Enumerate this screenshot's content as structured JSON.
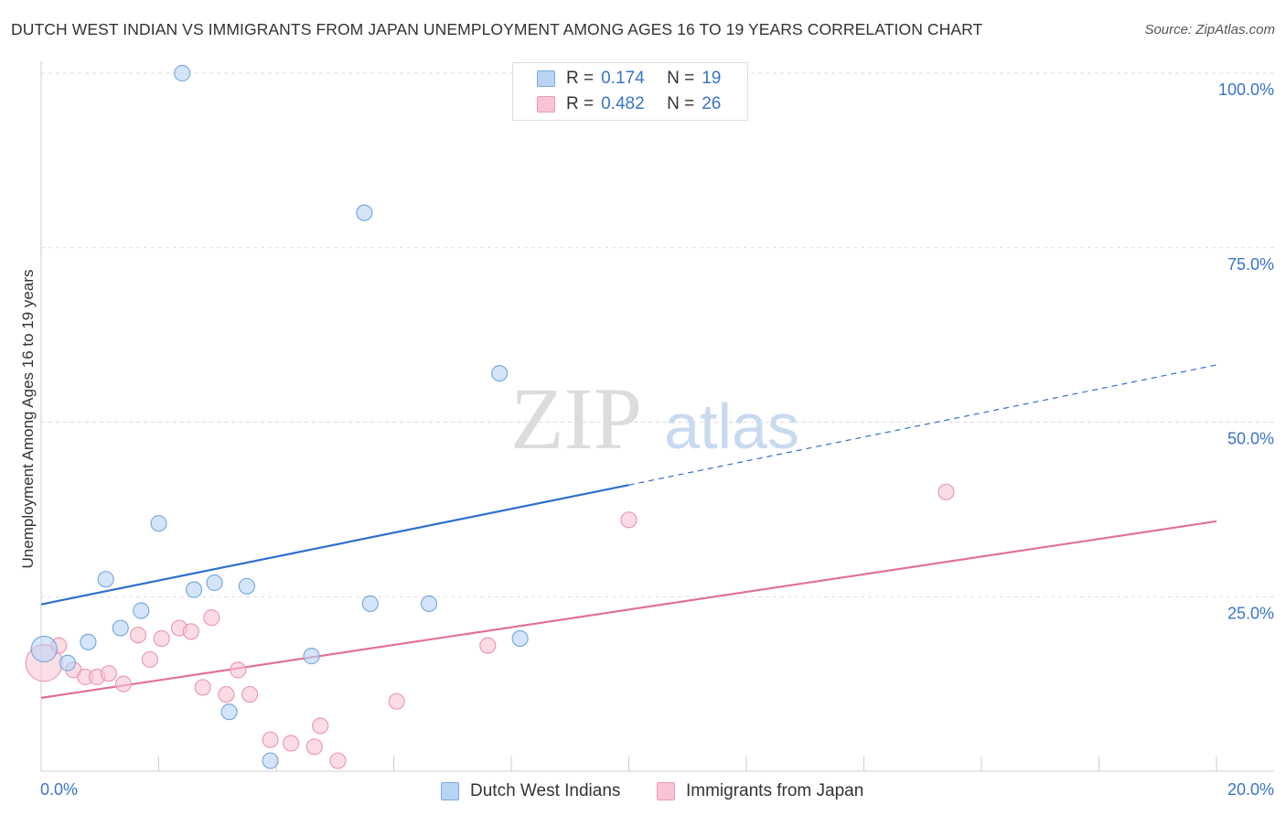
{
  "header": {
    "title": "DUTCH WEST INDIAN VS IMMIGRANTS FROM JAPAN UNEMPLOYMENT AMONG AGES 16 TO 19 YEARS CORRELATION CHART",
    "source": "Source: ZipAtlas.com"
  },
  "watermark": {
    "zip": "ZIP",
    "atlas": "atlas"
  },
  "legend": {
    "r_label": "R =",
    "n_label": "N =",
    "series1": {
      "r": "0.174",
      "n": "19"
    },
    "series2": {
      "r": "0.482",
      "n": "26"
    }
  },
  "colors": {
    "series1_fill": "#b8d4f5",
    "series1_stroke": "#7aaae0",
    "series1_line": "#2e6fcf",
    "series2_fill": "#f8c4d3",
    "series2_stroke": "#ec9ab2",
    "series2_line": "#e07298",
    "axis_label": "#3a74c8"
  },
  "chart_data": {
    "type": "scatter",
    "title": "DUTCH WEST INDIAN VS IMMIGRANTS FROM JAPAN UNEMPLOYMENT AMONG AGES 16 TO 19 YEARS CORRELATION CHART",
    "xlabel": "",
    "ylabel": "Unemployment Among Ages 16 to 19 years",
    "xlim": [
      0,
      20
    ],
    "ylim": [
      0,
      100
    ],
    "x_tick_labels": [
      "0.0%",
      "20.0%"
    ],
    "y_ticks": [
      {
        "value": 100,
        "label": "100.0%"
      },
      {
        "value": 75,
        "label": "75.0%"
      },
      {
        "value": 50,
        "label": "50.0%"
      },
      {
        "value": 25,
        "label": "25.0%"
      }
    ],
    "grid": true,
    "series": [
      {
        "name": "Dutch West Indians",
        "points": [
          {
            "x": 0.05,
            "y": 17.5,
            "big": true
          },
          {
            "x": 0.45,
            "y": 15.5
          },
          {
            "x": 0.8,
            "y": 18.5
          },
          {
            "x": 1.1,
            "y": 27.5
          },
          {
            "x": 1.35,
            "y": 20.5
          },
          {
            "x": 1.7,
            "y": 23
          },
          {
            "x": 2.0,
            "y": 35.5
          },
          {
            "x": 2.4,
            "y": 100
          },
          {
            "x": 2.6,
            "y": 26
          },
          {
            "x": 2.95,
            "y": 27
          },
          {
            "x": 3.2,
            "y": 8.5
          },
          {
            "x": 3.5,
            "y": 26.5
          },
          {
            "x": 3.9,
            "y": 1.5
          },
          {
            "x": 4.6,
            "y": 16.5
          },
          {
            "x": 5.5,
            "y": 80
          },
          {
            "x": 5.6,
            "y": 24
          },
          {
            "x": 6.6,
            "y": 24
          },
          {
            "x": 7.8,
            "y": 57
          },
          {
            "x": 8.15,
            "y": 19
          }
        ],
        "trend": {
          "x0": 0,
          "y0": 23.9,
          "x1_solid": 10,
          "y1_solid": 41,
          "x1_dashed": 20,
          "y1_dashed": 58.2
        }
      },
      {
        "name": "Immigrants from Japan",
        "points": [
          {
            "x": 0.05,
            "y": 15.5,
            "big": true
          },
          {
            "x": 0.3,
            "y": 18
          },
          {
            "x": 0.55,
            "y": 14.5
          },
          {
            "x": 0.75,
            "y": 13.5
          },
          {
            "x": 0.95,
            "y": 13.5
          },
          {
            "x": 1.15,
            "y": 14
          },
          {
            "x": 1.4,
            "y": 12.5
          },
          {
            "x": 1.65,
            "y": 19.5
          },
          {
            "x": 1.85,
            "y": 16
          },
          {
            "x": 2.05,
            "y": 19
          },
          {
            "x": 2.35,
            "y": 20.5
          },
          {
            "x": 2.55,
            "y": 20
          },
          {
            "x": 2.75,
            "y": 12
          },
          {
            "x": 2.9,
            "y": 22
          },
          {
            "x": 3.15,
            "y": 11
          },
          {
            "x": 3.35,
            "y": 14.5
          },
          {
            "x": 3.55,
            "y": 11
          },
          {
            "x": 3.9,
            "y": 4.5
          },
          {
            "x": 4.25,
            "y": 4
          },
          {
            "x": 4.65,
            "y": 3.5
          },
          {
            "x": 4.75,
            "y": 6.5
          },
          {
            "x": 5.05,
            "y": 1.5
          },
          {
            "x": 6.05,
            "y": 10
          },
          {
            "x": 7.6,
            "y": 18
          },
          {
            "x": 10.0,
            "y": 36
          },
          {
            "x": 15.4,
            "y": 40
          }
        ],
        "trend": {
          "x0": 0,
          "y0": 10.5,
          "x1": 20,
          "y1": 35.8
        }
      }
    ]
  }
}
